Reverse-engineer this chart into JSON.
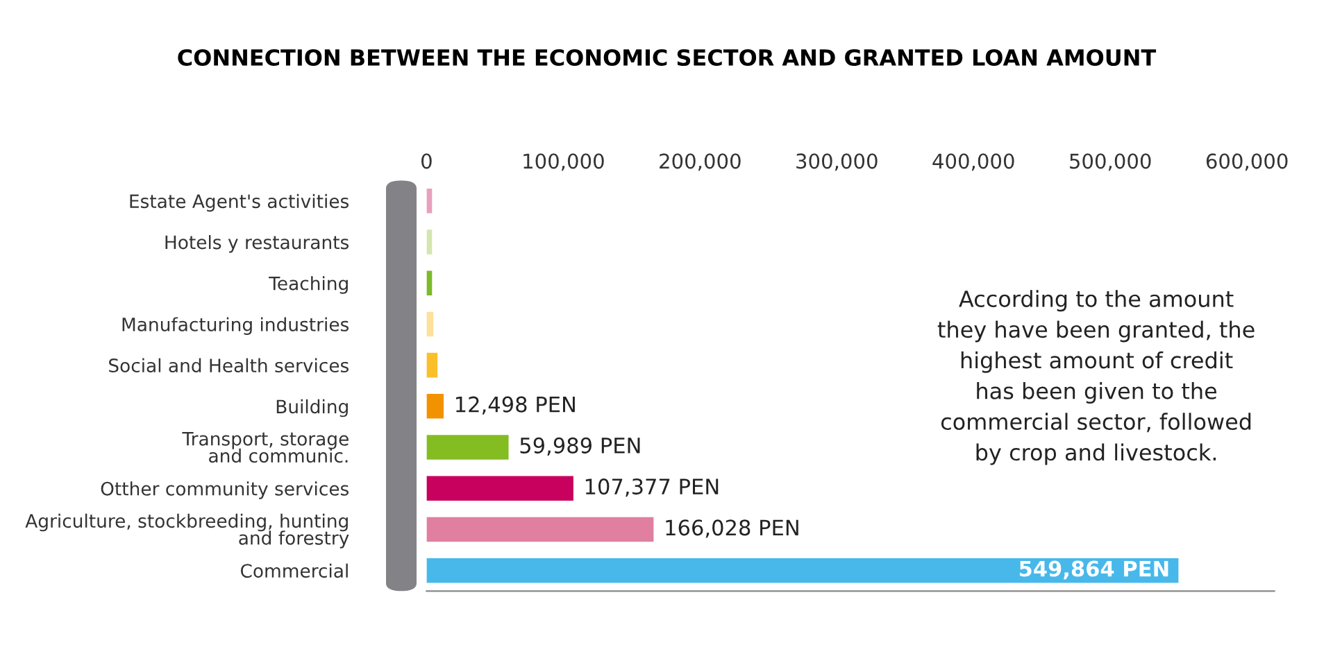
{
  "chart_data": {
    "type": "bar",
    "orientation": "horizontal",
    "title": "CONNECTION BETWEEN THE ECONOMIC SECTOR AND GRANTED LOAN AMOUNT",
    "categories": [
      "Estate Agent's activities",
      "Hotels y restaurants",
      "Teaching",
      "Manufacturing industries",
      "Social and Health services",
      "Building",
      "Transport, storage\nand communic.",
      "Otther community services",
      "Agriculture, stockbreeding, hunting\nand forestry",
      "Commercial"
    ],
    "values": [
      4000,
      4000,
      4000,
      5000,
      8000,
      12498,
      59989,
      107377,
      166028,
      549864
    ],
    "colors": [
      "#e8a0bc",
      "#d4e6b0",
      "#7cba2a",
      "#fde09a",
      "#fbbf2a",
      "#f39200",
      "#84bd22",
      "#c8005e",
      "#e07fa0",
      "#48b8ea"
    ],
    "value_labels": [
      null,
      null,
      null,
      null,
      null,
      "12,498 PEN",
      "59,989 PEN",
      "107,377 PEN",
      "166,028 PEN",
      "549,864 PEN"
    ],
    "xlim": [
      0,
      620000
    ],
    "xticks": [
      {
        "value": 0,
        "label": "0"
      },
      {
        "value": 100000,
        "label": "100,000"
      },
      {
        "value": 200000,
        "label": "200,000"
      },
      {
        "value": 300000,
        "label": "300,000"
      },
      {
        "value": 400000,
        "label": "400,000"
      },
      {
        "value": 500000,
        "label": "500,000"
      },
      {
        "value": 600000,
        "label": "600,000"
      }
    ],
    "grid": false,
    "legend": false,
    "annotations": [
      "According to the amount\nthey have been granted, the\nhighest amount of credit\nhas been given to the\ncommercial sector, followed\nby crop and livestock."
    ]
  }
}
